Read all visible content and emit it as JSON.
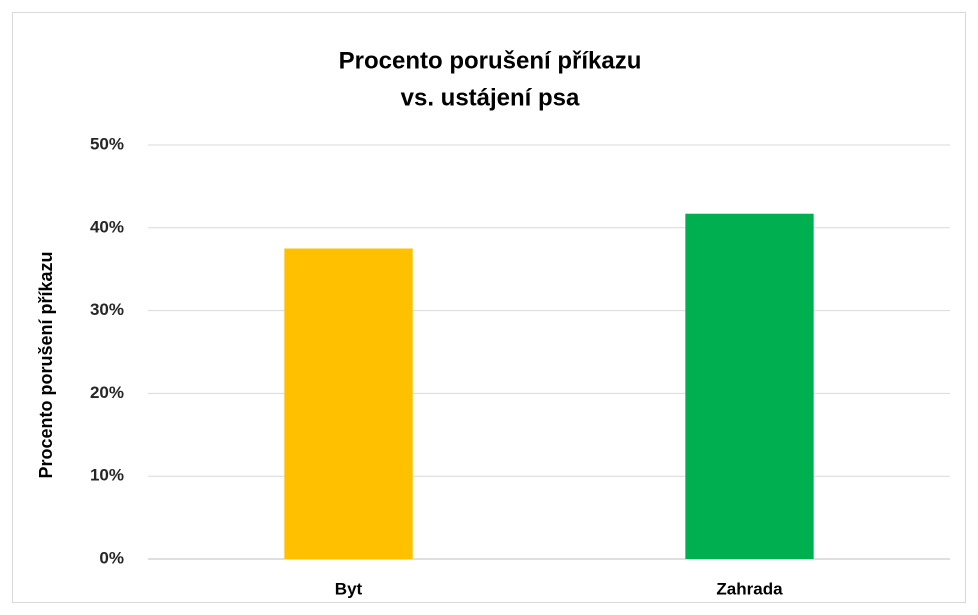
{
  "chart_data": {
    "type": "bar",
    "title": [
      "Procento porušení příkazu",
      "vs. ustájení psa"
    ],
    "y_label": "Procento porušení příkazu",
    "categories": [
      "Byt",
      "Zahrada"
    ],
    "values": [
      37.5,
      41.7
    ],
    "colors": [
      "#ffc000",
      "#00b050"
    ],
    "ylim": [
      0,
      50
    ],
    "yticks": [
      {
        "value": 0,
        "label": "0%"
      },
      {
        "value": 10,
        "label": "10%"
      },
      {
        "value": 20,
        "label": "20%"
      },
      {
        "value": 30,
        "label": "30%"
      },
      {
        "value": 40,
        "label": "40%"
      },
      {
        "value": 50,
        "label": "50%"
      }
    ],
    "grid": true
  }
}
